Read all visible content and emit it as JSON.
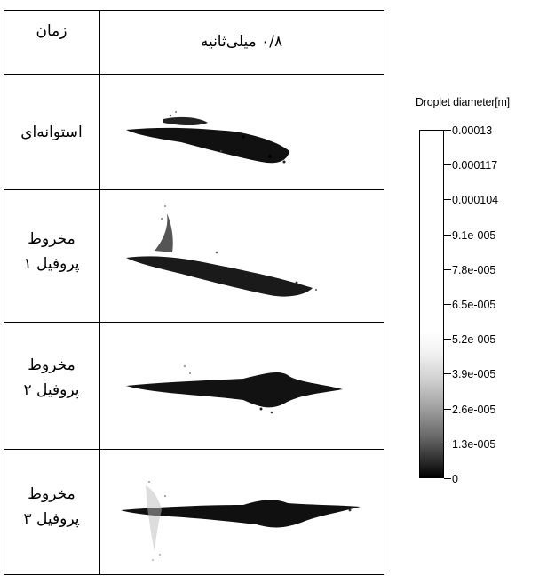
{
  "table": {
    "header_time": "زمان",
    "header_value": "۰/۸ میلی‌ثانیه",
    "rows": [
      {
        "line1": "استوانه‌ای",
        "line2": ""
      },
      {
        "line1": "مخروط",
        "line2": "پروفیل ۱"
      },
      {
        "line1": "مخروط",
        "line2": "پروفیل ۲"
      },
      {
        "line1": "مخروط",
        "line2": "پروفیل ۳"
      }
    ]
  },
  "legend": {
    "title": "Droplet diameter[m]",
    "ticks": [
      "0.00013",
      "0.000117",
      "0.000104",
      "9.1e-005",
      "7.8e-005",
      "6.5e-005",
      "5.2e-005",
      "3.9e-005",
      "2.6e-005",
      "1.3e-005",
      "0"
    ],
    "colors": {
      "max": "#ffffff",
      "min": "#000000"
    }
  }
}
